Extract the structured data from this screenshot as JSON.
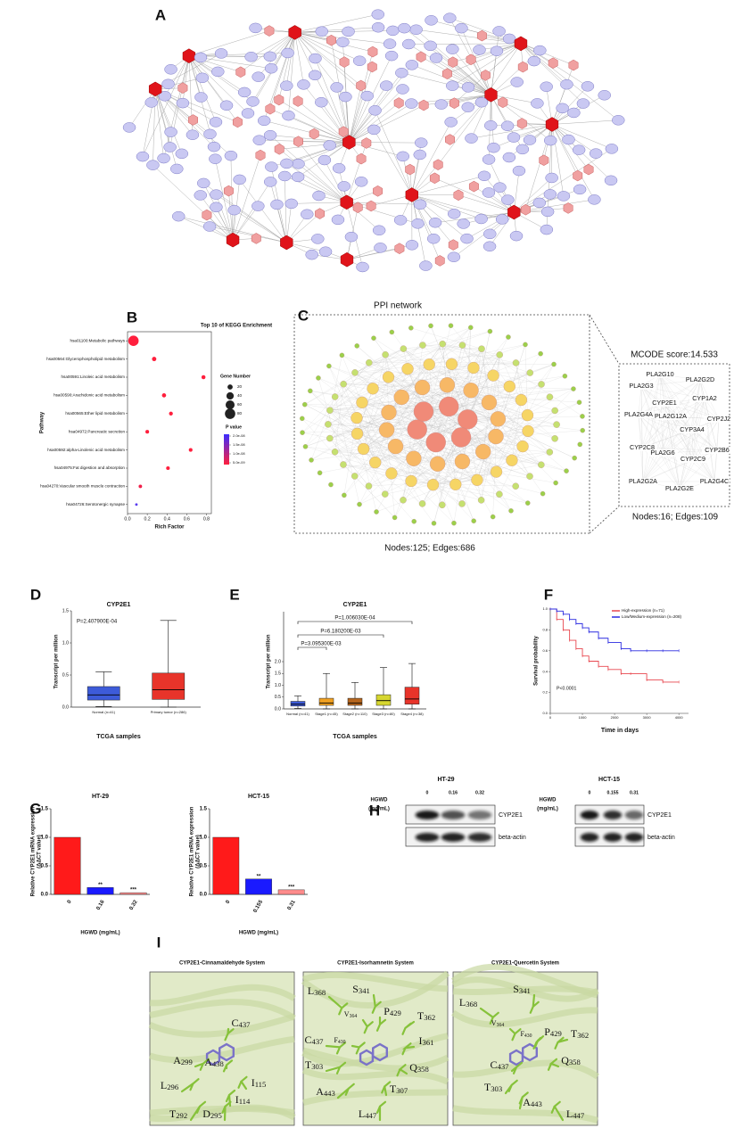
{
  "panel_labels": [
    "A",
    "B",
    "C",
    "D",
    "E",
    "F",
    "G",
    "H",
    "I"
  ],
  "chart_data": [
    {
      "type": "dotplot",
      "title": "Top 10 of KEGG Enrichment",
      "xlabel": "Rich Factor",
      "ylabel": "Pathway",
      "categories": [
        "hsa01100:Metabolic pathways",
        "hsa00564:Glycerophospholipid metabolism",
        "hsa00591:Linoleic acid metabolism",
        "hsa00590:Arachidonic acid metabolism",
        "hsa00565:Ether lipid metabolism",
        "hsa04972:Pancreatic secretion",
        "hsa00592:alpha-Linolenic acid metabolism",
        "hsa04975:Fat digestion and absorption",
        "hsa04270:Vascular smooth muscle contraction",
        "hsa04726:Serotonergic synapse"
      ],
      "values": [
        0.06,
        0.27,
        0.77,
        0.37,
        0.44,
        0.2,
        0.64,
        0.41,
        0.13,
        0.09
      ],
      "sizes": [
        80,
        14,
        12,
        13,
        11,
        10,
        10,
        10,
        9,
        5
      ],
      "colors": [
        "#ff1f3d",
        "#ff1f3d",
        "#ff1f3d",
        "#ff1f3d",
        "#ff1f3d",
        "#ff1f3d",
        "#ff1f3d",
        "#ff1f3d",
        "#f0204a",
        "#5a3cf0"
      ],
      "xlim": [
        0,
        0.85
      ],
      "xticks": [
        {
          "value": 0,
          "label": "0.0"
        },
        0.2,
        0.4,
        0.6,
        0.8
      ],
      "size_legend": {
        "title": "Gene Number",
        "values": [
          20,
          40,
          60,
          80
        ]
      },
      "color_legend": {
        "title": "P value",
        "colors": [
          "#ff1f3d",
          "#3b2dff"
        ],
        "ticks": [
          {
            "value": 2e-08,
            "label": "2.0e-08"
          },
          {
            "value": 1.5e-08,
            "label": "1.5e-08"
          },
          {
            "value": 1e-08,
            "label": "1.0e-08"
          },
          {
            "value": 5e-09,
            "label": "5.0e-09"
          }
        ]
      }
    },
    {
      "type": "box",
      "title": "CYP2E1",
      "ylabel": "Transcript per million",
      "xlabel": "TCGA samples",
      "categories": [
        "Normal (n=41)",
        "Primary tumor (n=286)"
      ],
      "min": [
        0.01,
        0
      ],
      "q1": [
        0.11,
        0.12
      ],
      "median": [
        0.19,
        0.27
      ],
      "q3": [
        0.32,
        0.53
      ],
      "max": [
        0.55,
        1.35
      ],
      "colors": [
        "#3d5bd9",
        "#e8342a"
      ],
      "ylim": [
        0,
        1.5
      ],
      "yticks": [
        {
          "value": 0,
          "label": "0.0"
        },
        0.5,
        {
          "value": 1,
          "label": "1.0"
        },
        1.5
      ],
      "annotations": [
        "P=2.407900E-04"
      ]
    },
    {
      "type": "box",
      "title": "CYP2E1",
      "ylabel": "Transcript per million",
      "xlabel": "TCGA samples",
      "categories": [
        "Normal (n=41)",
        "Stage1 (n=45)",
        "Stage2 (n=110)",
        "Stage3 (n=80)",
        "Stage4 (n=38)"
      ],
      "min": [
        0.02,
        0,
        0,
        0,
        0
      ],
      "q1": [
        0.12,
        0.15,
        0.15,
        0.15,
        0.2
      ],
      "median": [
        0.2,
        0.25,
        0.25,
        0.35,
        0.42
      ],
      "q3": [
        0.32,
        0.45,
        0.45,
        0.6,
        0.92
      ],
      "max": [
        0.55,
        1.5,
        1.12,
        1.75,
        1.92
      ],
      "colors": [
        "#3d5bd9",
        "#f0a020",
        "#b5651d",
        "#d6d630",
        "#e8342a"
      ],
      "ylim": [
        0,
        2
      ],
      "yticks": [
        {
          "value": 0,
          "label": "0.0"
        },
        0.5,
        {
          "value": 1,
          "label": "1.0"
        },
        1.5,
        {
          "value": 2,
          "label": "2.0"
        }
      ],
      "annotations": [
        "P=1.006030E-04",
        "P=6.180200E-03",
        "P=3.095300E-03"
      ]
    },
    {
      "type": "survival",
      "xlabel": "Time in days",
      "ylabel": "Survival probability",
      "x": [
        0,
        200,
        400,
        600,
        800,
        1000,
        1200,
        1500,
        1800,
        2200,
        2500,
        3000,
        3500,
        4000
      ],
      "series": [
        {
          "name": "High-expression (n=71)",
          "color": "#e8474f",
          "values": [
            1,
            0.9,
            0.8,
            0.7,
            0.62,
            0.55,
            0.5,
            0.45,
            0.42,
            0.38,
            0.38,
            0.32,
            0.3,
            0.3
          ]
        },
        {
          "name": "Low/Medium-expression (n=208)",
          "color": "#2a2ae0",
          "values": [
            1,
            0.98,
            0.95,
            0.9,
            0.86,
            0.82,
            0.78,
            0.72,
            0.68,
            0.62,
            0.6,
            0.6,
            0.6,
            0.6
          ]
        }
      ],
      "xlim": [
        0,
        4300
      ],
      "xticks": [
        0,
        1000,
        2000,
        3000,
        4000
      ],
      "ylim": [
        0,
        1
      ],
      "yticks": [
        {
          "value": 0,
          "label": "0.0"
        },
        0.2,
        0.4,
        0.6,
        0.8,
        {
          "value": 1,
          "label": "1.0"
        }
      ],
      "annotations": [
        "P<0.0001"
      ]
    },
    {
      "type": "bar",
      "title": "HT-29",
      "ylabel": [
        "Relative CYP2E1 mRNA expression",
        "(ΔΔCT value)"
      ],
      "xlabel": "HGWD (mg/mL)",
      "categories": [
        "0",
        "0.16",
        "0.32"
      ],
      "values": [
        1.0,
        0.12,
        0.03
      ],
      "significance": [
        null,
        "**",
        "***"
      ],
      "colors": [
        "#ff1a1a",
        "#1a1aff",
        "#ff8c8c"
      ],
      "ylim": [
        0,
        1.5
      ],
      "yticks": [
        {
          "value": 0,
          "label": "0.0"
        },
        0.5,
        {
          "value": 1,
          "label": "1.0"
        },
        1.5
      ]
    },
    {
      "type": "bar",
      "title": "HCT-15",
      "ylabel": [
        "Relative CYP2E1 mRNA expression",
        "(ΔΔCT value)"
      ],
      "xlabel": "HGWD (mg/mL)",
      "categories": [
        "0",
        "0.155",
        "0.31"
      ],
      "values": [
        1.0,
        0.27,
        0.08
      ],
      "significance": [
        null,
        "**",
        "***"
      ],
      "colors": [
        "#ff1a1a",
        "#1a1aff",
        "#ff8c8c"
      ],
      "ylim": [
        0,
        1.5
      ],
      "yticks": [
        {
          "value": 0,
          "label": "0.0"
        },
        0.5,
        {
          "value": 1,
          "label": "1.0"
        },
        1.5
      ]
    }
  ],
  "ppi": {
    "title": "PPI network",
    "network_caption": "Nodes:125; Edges:686",
    "cluster_title": "MCODE score:14.533",
    "cluster_caption": "Nodes:16; Edges:109",
    "cluster_nodes": [
      "PLA2G10",
      "PLA2G2D",
      "PLA2G3",
      "CYP1A2",
      "PLA2G4A",
      "CYP2E1",
      "PLA2G12A",
      "CYP2J2",
      "CYP3A4",
      "CYP2C8",
      "CYP2B6",
      "PLA2G6",
      "CYP2C9",
      "PLA2G2A",
      "PLA2G4C",
      "PLA2G2E"
    ]
  },
  "blots": [
    {
      "title": "HT-29",
      "dose_label": [
        "HGWD",
        "(mg/mL)"
      ],
      "lanes": [
        "0",
        "0.16",
        "0.32"
      ],
      "bands": [
        "CYP2E1",
        "beta-actin"
      ]
    },
    {
      "title": "HCT-15",
      "dose_label": [
        "HGWD",
        "(mg/mL)"
      ],
      "lanes": [
        "0",
        "0.155",
        "0.31"
      ],
      "bands": [
        "CYP2E1",
        "beta-actin"
      ]
    }
  ],
  "docking": [
    {
      "title": "CYP2E1-Cinnamaldehyde System",
      "residues": [
        "C437",
        "A299",
        "A438",
        "L296",
        "I115",
        "I114",
        "T292",
        "D295"
      ]
    },
    {
      "title": "CYP2E1-Isorhamnetin System",
      "residues": [
        "L368",
        "S341",
        "V364",
        "P429",
        "T362",
        "C437",
        "F430",
        "I361",
        "T303",
        "Q358",
        "A443",
        "T307",
        "L447"
      ]
    },
    {
      "title": "CYP2E1-Quercetin System",
      "residues": [
        "L368",
        "S341",
        "V364",
        "F430",
        "P429",
        "T362",
        "Q358",
        "C437",
        "T303",
        "A443",
        "L447"
      ]
    }
  ]
}
